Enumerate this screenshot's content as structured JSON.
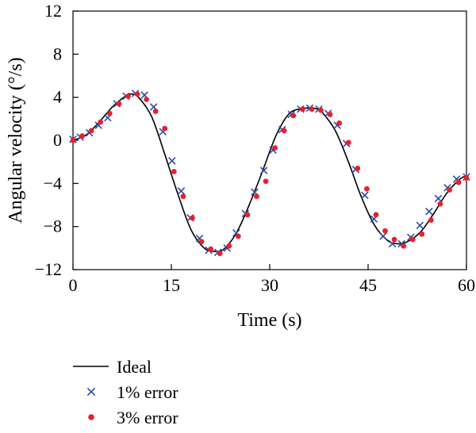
{
  "chart_data": {
    "type": "line",
    "xlabel": "Time (s)",
    "ylabel": "Angular velocity (°/s)",
    "xlim": [
      0,
      60
    ],
    "ylim": [
      -12,
      12
    ],
    "xticks": [
      0,
      15,
      30,
      45,
      60
    ],
    "yticks": [
      -12,
      -8,
      -4,
      0,
      4,
      8,
      12
    ],
    "grid": false,
    "legend_position": "bottom-left",
    "colors": {
      "ideal": "#000000",
      "err1": "#2e4aa8",
      "err3": "#e8202a"
    },
    "series": [
      {
        "name": "Ideal",
        "style": "line",
        "x": [
          0,
          2,
          4,
          6,
          8,
          9,
          10,
          12,
          14,
          16,
          18,
          20,
          21.5,
          23,
          25,
          27,
          29,
          31,
          33,
          35,
          36,
          37,
          38,
          40,
          42,
          44,
          46,
          48,
          49.5,
          51,
          53,
          55,
          57,
          59,
          60
        ],
        "y": [
          0,
          0.5,
          1.7,
          3.1,
          4.1,
          4.3,
          4.0,
          2.2,
          -1.3,
          -5.0,
          -8.3,
          -10.0,
          -10.3,
          -10.1,
          -8.5,
          -5.8,
          -2.7,
          0.5,
          2.5,
          2.95,
          3.0,
          2.95,
          2.6,
          0.9,
          -2.0,
          -5.3,
          -7.9,
          -9.3,
          -9.6,
          -9.4,
          -8.5,
          -6.8,
          -4.9,
          -3.6,
          -3.3
        ]
      },
      {
        "name": "1% error",
        "style": "x-marker",
        "x": [
          0,
          1.1,
          2.5,
          3.9,
          5.3,
          6.7,
          8.1,
          9.5,
          10.9,
          12.3,
          13.7,
          15.1,
          16.5,
          17.9,
          19.3,
          20.7,
          22.1,
          23.5,
          24.9,
          26.3,
          27.7,
          29.1,
          30.5,
          31.9,
          33.3,
          34.7,
          36.1,
          37.5,
          38.9,
          40.3,
          41.7,
          43.1,
          44.5,
          45.9,
          47.3,
          48.7,
          50.1,
          51.5,
          52.9,
          54.3,
          55.7,
          57.1,
          58.5,
          60
        ],
        "y": [
          0.1,
          0.3,
          0.7,
          1.4,
          2.1,
          3.4,
          4.1,
          4.35,
          4.2,
          3.1,
          0.8,
          -1.9,
          -4.7,
          -7.2,
          -9.1,
          -10.2,
          -10.4,
          -10.0,
          -8.6,
          -6.8,
          -4.8,
          -2.8,
          -0.9,
          1.0,
          2.4,
          2.9,
          3.0,
          2.9,
          2.5,
          1.4,
          -0.3,
          -2.7,
          -5.1,
          -7.3,
          -8.9,
          -9.6,
          -9.6,
          -9.0,
          -7.9,
          -6.6,
          -5.4,
          -4.4,
          -3.6,
          -3.4
        ]
      },
      {
        "name": "3% error",
        "style": "dot-marker",
        "x": [
          0,
          1.4,
          2.8,
          4.2,
          5.6,
          7.0,
          8.4,
          9.8,
          11.2,
          12.6,
          14.0,
          15.4,
          16.8,
          18.2,
          19.6,
          21.0,
          22.4,
          23.8,
          25.2,
          26.6,
          28.0,
          29.4,
          30.8,
          32.2,
          33.6,
          35.0,
          36.4,
          37.8,
          39.2,
          40.6,
          42.0,
          43.4,
          44.8,
          46.2,
          47.6,
          49.0,
          50.4,
          51.8,
          53.2,
          54.6,
          56.0,
          57.4,
          58.8,
          60
        ],
        "y": [
          0.0,
          0.4,
          0.9,
          1.7,
          2.5,
          3.4,
          4.1,
          4.3,
          3.8,
          2.7,
          1.1,
          -2.9,
          -5.2,
          -7.2,
          -9.4,
          -10.1,
          -10.5,
          -9.8,
          -8.9,
          -6.9,
          -5.2,
          -3.8,
          -0.7,
          0.9,
          2.3,
          2.9,
          2.9,
          2.8,
          2.4,
          1.6,
          -0.2,
          -2.6,
          -4.5,
          -6.9,
          -8.4,
          -9.2,
          -9.8,
          -9.2,
          -8.7,
          -7.4,
          -5.9,
          -4.6,
          -3.9,
          -3.5
        ]
      }
    ]
  }
}
